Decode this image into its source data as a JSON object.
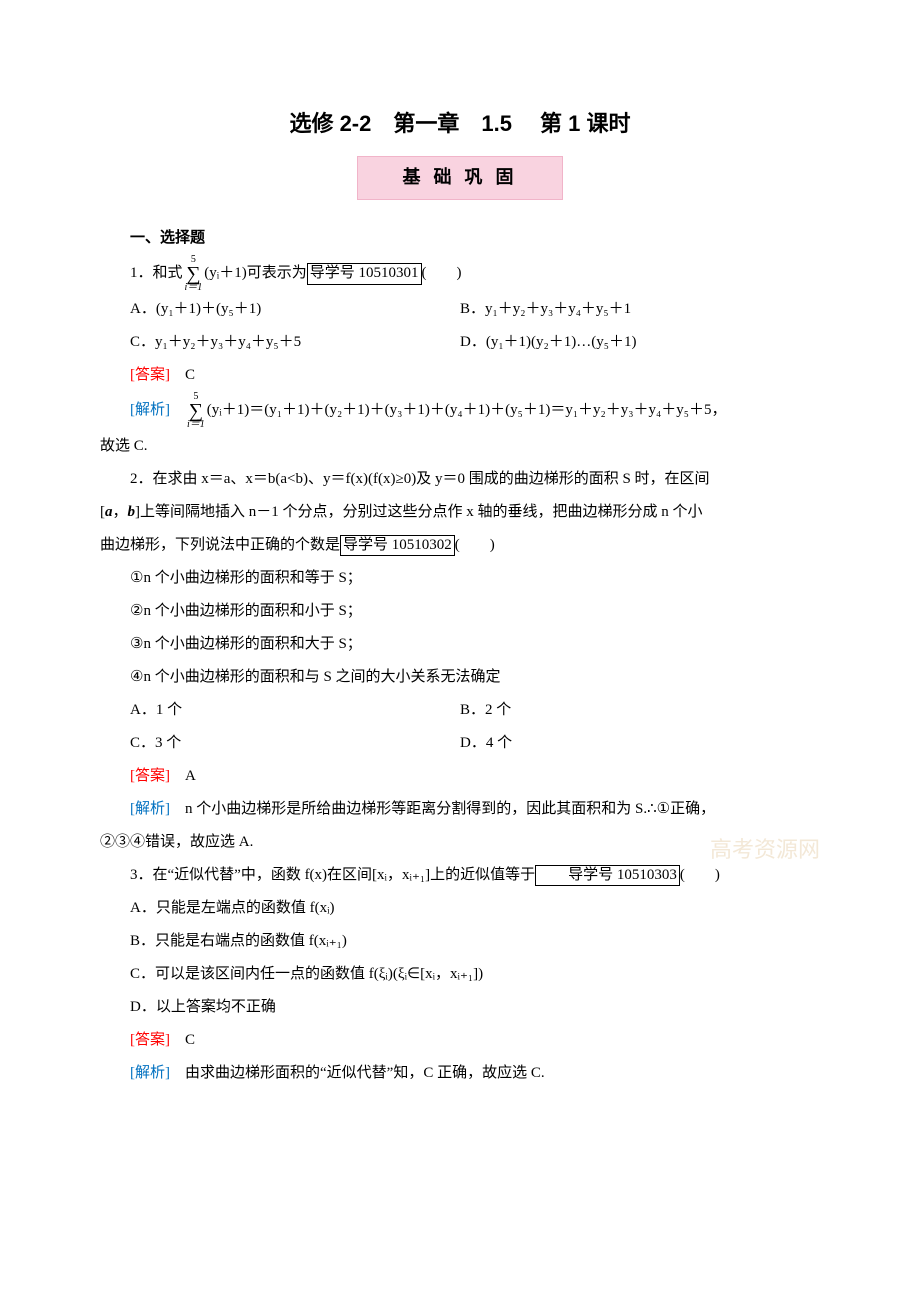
{
  "title": "选修 2-2　第一章　1.5　 第 1 课时",
  "banner": "基 础 巩 固",
  "sectionHead": "一、选择题",
  "q1": {
    "stemPre": "1．和式",
    "sumUpper": "5",
    "sumLower": "i＝1",
    "sumBody": "(yᵢ＋1)可表示为",
    "boxRef": "导学号 10510301",
    "tail": "(　　)",
    "optA": "A．(y₁＋1)＋(y₅＋1)",
    "optB": "B．y₁＋y₂＋y₃＋y₄＋y₅＋1",
    "optC": "C．y₁＋y₂＋y₃＋y₄＋y₅＋5",
    "optD": "D．(y₁＋1)(y₂＋1)…(y₅＋1)",
    "answerLabel": "[答案]",
    "answer": "　C",
    "analysisLabel": "[解析]",
    "sumUpper2": "5",
    "sumLower2": "i＝1",
    "analysisBody": "(yᵢ＋1)＝(y₁＋1)＋(y₂＋1)＋(y₃＋1)＋(y₄＋1)＋(y₅＋1)＝y₁＋y₂＋y₃＋y₄＋y₅＋5，",
    "analysisTail": "故选 C."
  },
  "q2": {
    "line1a": "2．在求由 x＝a、x＝b(a<b)、y＝f(x)(f(x)≥0)及 y＝0 围成的曲边梯形的面积 S 时，在区间",
    "line1b_pre": "[",
    "line1b_a": "a",
    "line1b_mid": "，",
    "line1b_b": "b",
    "line1b_post": "]上等间隔地插入 n－1 个分点，分别过这些分点作 x 轴的垂线，把曲边梯形分成 n 个小",
    "line1c": "曲边梯形，下列说法中正确的个数是",
    "boxRef": "导学号 10510302",
    "tail": "(　　)",
    "opt1": "①n 个小曲边梯形的面积和等于 S；",
    "opt2": "②n 个小曲边梯形的面积和小于 S；",
    "opt3": "③n 个小曲边梯形的面积和大于 S；",
    "opt4": "④n 个小曲边梯形的面积和与 S 之间的大小关系无法确定",
    "optA": "A．1 个",
    "optB": "B．2 个",
    "optC": "C．3 个",
    "optD": "D．4 个",
    "answerLabel": "[答案]",
    "answer": "　A",
    "analysisLabel": "[解析]",
    "analysisBody": "　n 个小曲边梯形是所给曲边梯形等距离分割得到的，因此其面积和为 S.∴①正确，",
    "analysisTail": "②③④错误，故应选 A."
  },
  "q3": {
    "stemA": "3．在“近似代替”中，函数 f(x)在区间[xᵢ，xᵢ₊₁]上的近似值等于",
    "boxRef": "导学号 10510303",
    "tail": "(　　)",
    "optA": "A．只能是左端点的函数值 f(xᵢ)",
    "optB": "B．只能是右端点的函数值 f(xᵢ₊₁)",
    "optC": "C．可以是该区间内任一点的函数值 f(ξᵢ)(ξᵢ∈[xᵢ，xᵢ₊₁])",
    "optD": "D．以上答案均不正确",
    "answerLabel": "[答案]",
    "answer": "　C",
    "analysisLabel": "[解析]",
    "analysisBody": "　由求曲边梯形面积的“近似代替”知，C 正确，故应选 C."
  },
  "watermark": "高考资源网"
}
